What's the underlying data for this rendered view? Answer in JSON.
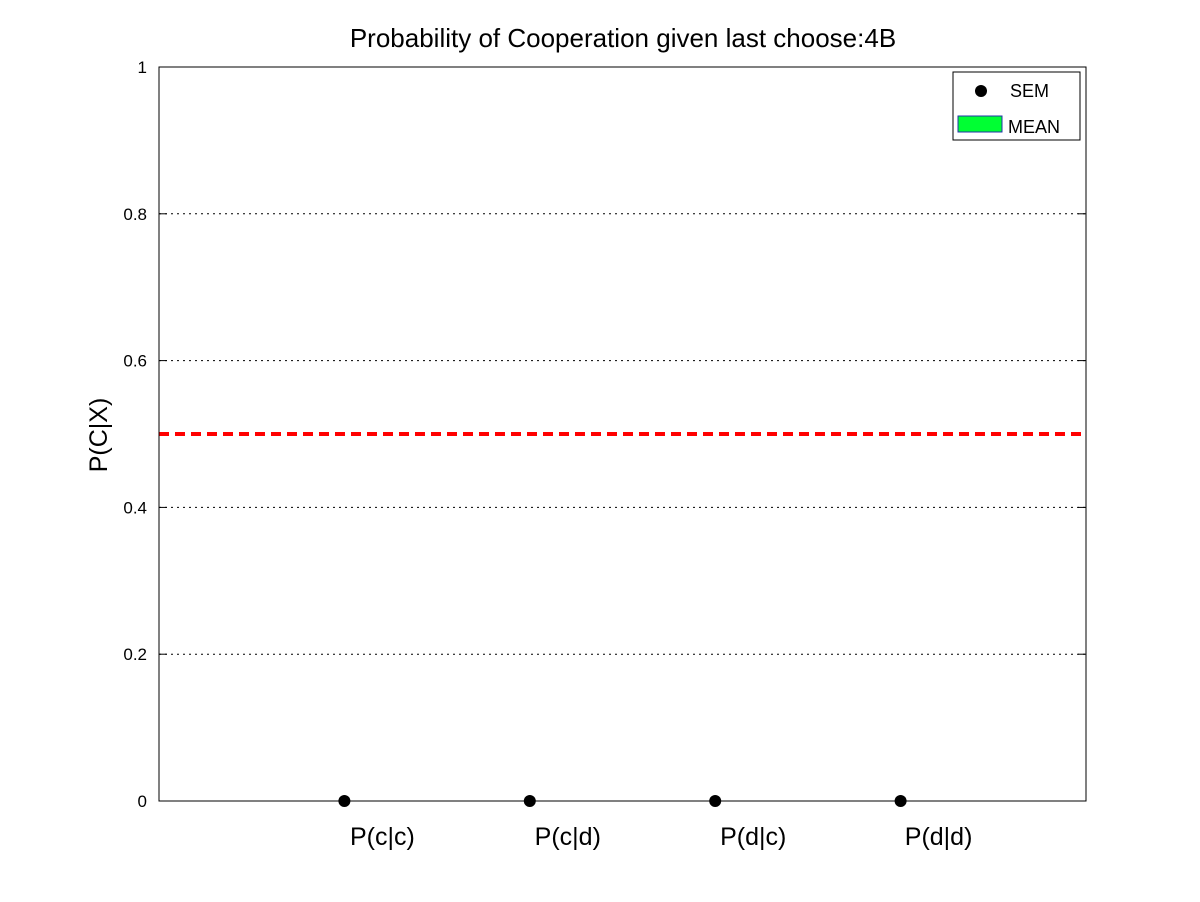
{
  "chart_data": {
    "type": "scatter",
    "title": "Probability of Cooperation given last choose:4B",
    "xlabel": "",
    "ylabel": "P(C|X)",
    "categories": [
      "P(c|c)",
      "P(c|d)",
      "P(d|c)",
      "P(d|d)"
    ],
    "xlim": [
      0,
      5
    ],
    "ylim": [
      0,
      1
    ],
    "yticks": [
      0,
      0.2,
      0.4,
      0.6,
      0.8,
      1
    ],
    "ytick_labels": [
      "0",
      "0.2",
      "0.4",
      "0.6",
      "0.8",
      "1"
    ],
    "grid": "horizontal dotted",
    "series": [
      {
        "name": "SEM",
        "kind": "points",
        "color": "#000000",
        "values": [
          0,
          0,
          0,
          0
        ]
      },
      {
        "name": "MEAN",
        "kind": "bar",
        "color": "#00ff33",
        "values": [
          0,
          0,
          0,
          0
        ]
      }
    ],
    "reference_line": {
      "y": 0.5,
      "color": "#ff0000",
      "style": "dashed"
    },
    "legend": {
      "position": "top-right",
      "entries": [
        {
          "label": "SEM",
          "marker": "dot",
          "color": "#000000"
        },
        {
          "label": "MEAN",
          "marker": "patch",
          "color": "#00ff33"
        }
      ]
    }
  }
}
